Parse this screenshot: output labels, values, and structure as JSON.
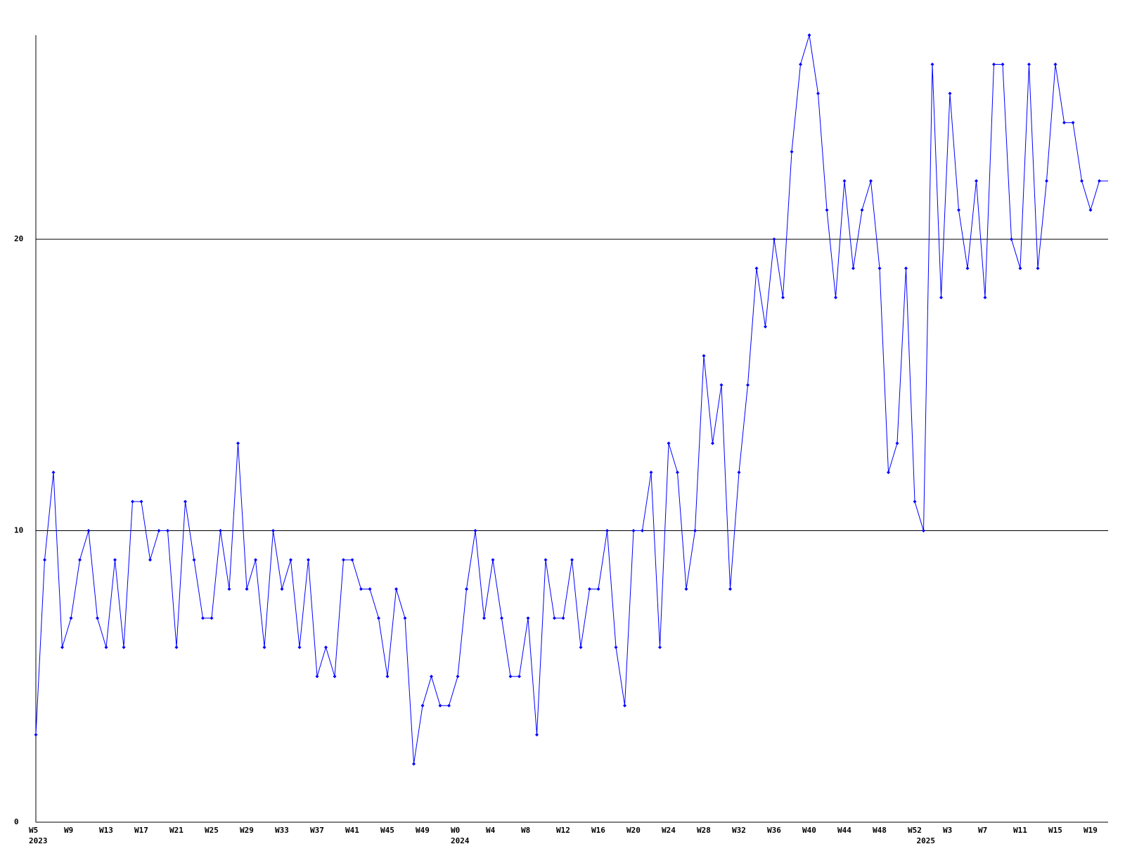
{
  "chart_data": {
    "type": "line",
    "categories": [
      "W5",
      null,
      null,
      null,
      "W9",
      null,
      null,
      null,
      "W13",
      null,
      null,
      null,
      "W17",
      null,
      null,
      null,
      "W21",
      null,
      null,
      null,
      "W25",
      null,
      null,
      null,
      "W29",
      null,
      null,
      null,
      "W33",
      null,
      null,
      null,
      "W37",
      null,
      null,
      null,
      "W41",
      null,
      null,
      null,
      "W45",
      null,
      null,
      null,
      "W49",
      null,
      null,
      null,
      "W0",
      null,
      null,
      null,
      "W4",
      null,
      null,
      null,
      "W8",
      null,
      null,
      null,
      "W12",
      null,
      null,
      null,
      "W16",
      null,
      null,
      null,
      "W20",
      null,
      null,
      null,
      "W24",
      null,
      null,
      null,
      "W28",
      null,
      null,
      null,
      "W32",
      null,
      null,
      null,
      "W36",
      null,
      null,
      null,
      "W40",
      null,
      null,
      null,
      "W44",
      null,
      null,
      null,
      "W48",
      null,
      null,
      null,
      "W52",
      null,
      null,
      null,
      "W3",
      null,
      null,
      null,
      "W7",
      null,
      null,
      null,
      "W11",
      null,
      null,
      null,
      "W15",
      null,
      null,
      null,
      "W19",
      null,
      null
    ],
    "year_labels": [
      {
        "label": "2023",
        "category_index": 0
      },
      {
        "label": "2024",
        "category_index": 48
      },
      {
        "label": "2025",
        "category_index": 101
      }
    ],
    "values": [
      3,
      9,
      12,
      6,
      7,
      9,
      10,
      7,
      6,
      9,
      6,
      11,
      11,
      9,
      10,
      10,
      6,
      11,
      9,
      7,
      7,
      10,
      8,
      13,
      8,
      9,
      6,
      10,
      8,
      9,
      6,
      9,
      5,
      6,
      5,
      9,
      9,
      8,
      8,
      7,
      5,
      8,
      7,
      2,
      4,
      5,
      4,
      4,
      5,
      8,
      10,
      7,
      9,
      7,
      5,
      5,
      7,
      3,
      9,
      7,
      7,
      9,
      6,
      8,
      8,
      10,
      6,
      4,
      10,
      10,
      12,
      6,
      13,
      12,
      8,
      10,
      16,
      13,
      15,
      8,
      12,
      15,
      19,
      17,
      20,
      18,
      23,
      26,
      27,
      25,
      21,
      18,
      22,
      19,
      21,
      22,
      19,
      12,
      13,
      19,
      11,
      10,
      26,
      18,
      25,
      21,
      19,
      22,
      18,
      26,
      26,
      20,
      19,
      26,
      19,
      22,
      26,
      24,
      24,
      22,
      21,
      22,
      22
    ],
    "color": "#0000ff",
    "ylim": [
      0,
      27
    ],
    "yticks": [
      0,
      10,
      20
    ],
    "grid": true
  }
}
